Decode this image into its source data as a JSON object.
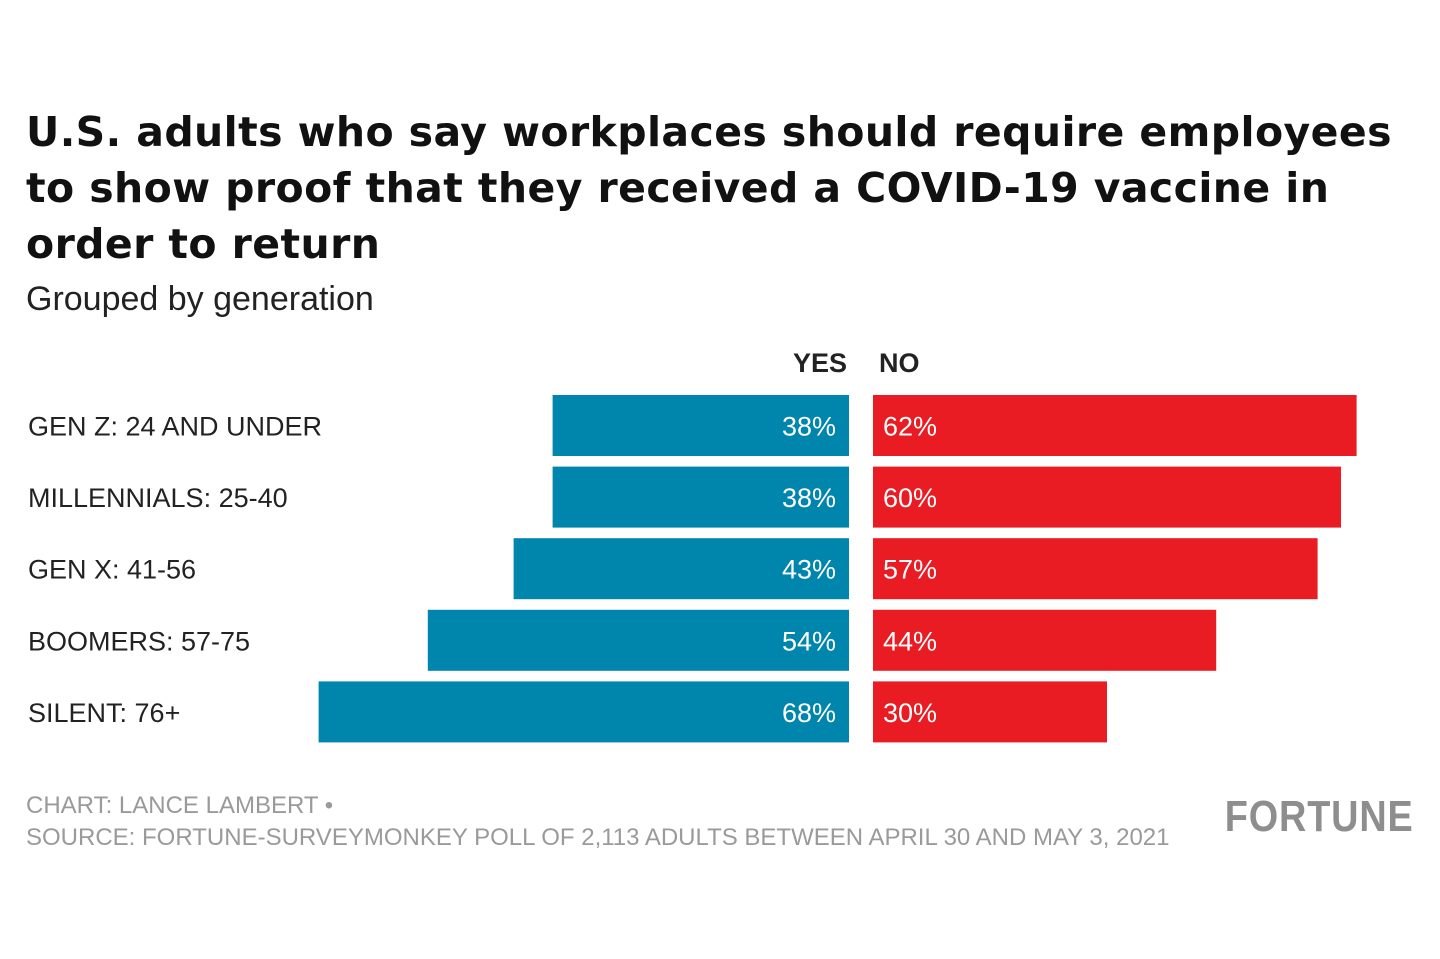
{
  "chart_data": {
    "type": "bar",
    "orientation": "horizontal-diverging",
    "title": "U.S. adults who say workplaces should require employees to show proof that they received a COVID-19 vaccine in order to return",
    "subtitle": "Grouped by generation",
    "categories": [
      "GEN Z: 24 AND UNDER",
      "MILLENNIALS: 25-40",
      "GEN X: 41-56",
      "BOOMERS: 57-75",
      "SILENT: 76+"
    ],
    "series": [
      {
        "name": "YES",
        "values": [
          38,
          38,
          43,
          54,
          68
        ],
        "labels": [
          "38%",
          "38%",
          "43%",
          "54%",
          "68%"
        ],
        "color": "#0085ad"
      },
      {
        "name": "NO",
        "values": [
          62,
          60,
          57,
          44,
          30
        ],
        "labels": [
          "62%",
          "60%",
          "57%",
          "44%",
          "30%"
        ],
        "color": "#e91c24"
      }
    ],
    "xlim": [
      0,
      100
    ],
    "unit": "%",
    "grid": false
  },
  "footer": {
    "credit": "CHART: LANCE LAMBERT •",
    "source": "SOURCE: FORTUNE-SURVEYMONKEY POLL OF 2,113 ADULTS BETWEEN APRIL 30 AND MAY 3, 2021"
  },
  "brand": {
    "logo_text": "FORTUNE"
  }
}
